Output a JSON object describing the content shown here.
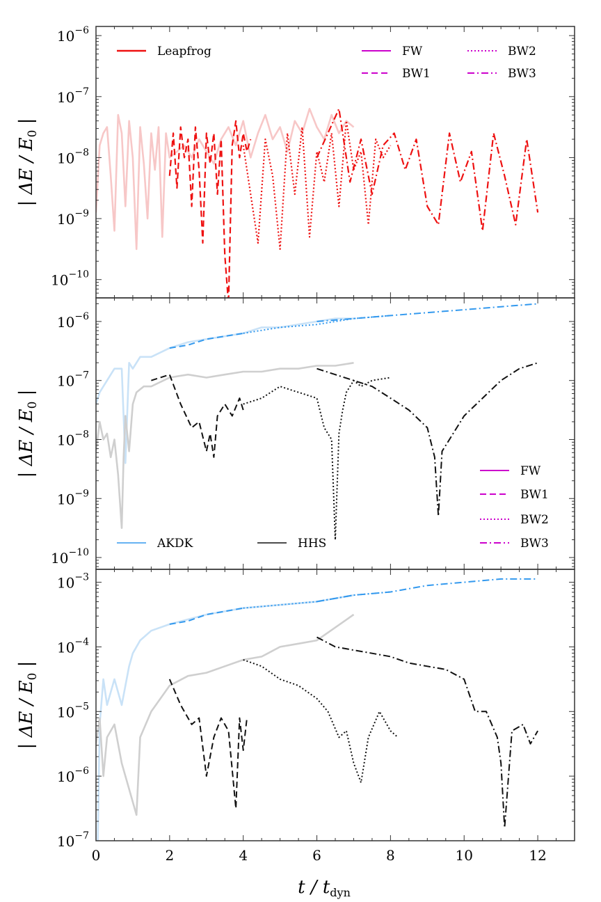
{
  "figure": {
    "xlabel_main": "t / t",
    "xlabel_sub": "dyn",
    "ylabel_main": "| ΔE / E",
    "ylabel_sub": "0",
    "ylabel_end": "|"
  },
  "chart_data": [
    {
      "type": "line",
      "panel": "top",
      "ylabel": "| ΔE / E0 |",
      "xlabel": "",
      "xlim": [
        0,
        13
      ],
      "ylog_range": [
        -10.3,
        -5.85
      ],
      "ytick_exponents": [
        -6,
        -7,
        -8,
        -9,
        -10
      ],
      "ytick_base": "10",
      "legend_main": [
        {
          "label": "Leapfrog",
          "color": "#ee1111",
          "style": "solid"
        }
      ],
      "legend_variants": [
        {
          "label": "FW",
          "style": "solid"
        },
        {
          "label": "BW1",
          "style": "dashed"
        },
        {
          "label": "BW2",
          "style": "dotted"
        },
        {
          "label": "BW3",
          "style": "dashdot"
        }
      ],
      "legend_variant_color": "#cc00cc",
      "series": [
        {
          "name": "Leapfrog FW",
          "color": "#f7c7c7",
          "style": "solid",
          "width": 2.6,
          "x": [
            0.0,
            0.1,
            0.2,
            0.3,
            0.4,
            0.5,
            0.6,
            0.7,
            0.8,
            0.9,
            1.0,
            1.1,
            1.2,
            1.3,
            1.4,
            1.5,
            1.6,
            1.7,
            1.8,
            1.9,
            2.0,
            2.2,
            2.4,
            2.6,
            2.8,
            3.0,
            3.2,
            3.4,
            3.6,
            3.8,
            4.0,
            4.2,
            4.4,
            4.6,
            4.8,
            5.0,
            5.2,
            5.4,
            5.6,
            5.8,
            6.0,
            6.2,
            6.4,
            6.6,
            6.8,
            7.0
          ],
          "y": [
            -8.9,
            -7.8,
            -7.6,
            -7.5,
            -8.3,
            -9.2,
            -7.3,
            -7.6,
            -8.8,
            -7.4,
            -8.0,
            -9.5,
            -7.5,
            -8.1,
            -9.0,
            -7.6,
            -8.2,
            -7.5,
            -9.3,
            -7.6,
            -8.0,
            -7.9,
            -7.8,
            -8.0,
            -7.7,
            -7.9,
            -8.1,
            -7.7,
            -7.5,
            -7.8,
            -7.4,
            -8.0,
            -7.6,
            -7.3,
            -7.7,
            -7.5,
            -7.9,
            -7.4,
            -7.6,
            -7.2,
            -7.5,
            -7.7,
            -7.3,
            -7.6,
            -7.4,
            -7.5
          ]
        },
        {
          "name": "Leapfrog BW1",
          "color": "#ee1111",
          "style": "dashed",
          "width": 2.2,
          "x": [
            2.0,
            2.1,
            2.2,
            2.3,
            2.4,
            2.5,
            2.6,
            2.7,
            2.8,
            2.9,
            3.0,
            3.1,
            3.2,
            3.3,
            3.4,
            3.5,
            3.6,
            3.7,
            3.8,
            3.9,
            4.0,
            4.1,
            4.2
          ],
          "y": [
            -8.3,
            -7.6,
            -8.5,
            -7.5,
            -8.0,
            -7.7,
            -8.8,
            -7.5,
            -8.2,
            -9.4,
            -7.6,
            -8.1,
            -7.6,
            -8.6,
            -7.7,
            -9.6,
            -10.4,
            -7.8,
            -7.4,
            -8.0,
            -7.6,
            -7.9,
            -7.7
          ]
        },
        {
          "name": "Leapfrog BW2",
          "color": "#ee1111",
          "style": "dotted",
          "width": 2.2,
          "x": [
            4.0,
            4.2,
            4.4,
            4.6,
            4.8,
            5.0,
            5.2,
            5.4,
            5.6,
            5.8,
            6.0,
            6.2,
            6.4,
            6.6,
            6.8,
            7.0,
            7.2,
            7.4,
            7.6,
            7.8,
            8.0
          ],
          "y": [
            -7.8,
            -8.6,
            -9.4,
            -7.7,
            -8.3,
            -9.5,
            -7.6,
            -8.6,
            -7.5,
            -9.3,
            -7.9,
            -8.4,
            -7.6,
            -8.8,
            -7.4,
            -8.2,
            -7.9,
            -9.1,
            -7.7,
            -8.0,
            -7.8
          ]
        },
        {
          "name": "Leapfrog BW3",
          "color": "#ee1111",
          "style": "dashdot",
          "width": 2.2,
          "x": [
            6.0,
            6.3,
            6.6,
            6.9,
            7.2,
            7.5,
            7.8,
            8.1,
            8.4,
            8.7,
            9.0,
            9.3,
            9.6,
            9.9,
            10.2,
            10.5,
            10.8,
            11.1,
            11.4,
            11.7,
            12.0
          ],
          "y": [
            -8.0,
            -7.6,
            -7.2,
            -8.4,
            -7.7,
            -8.6,
            -7.8,
            -7.6,
            -8.2,
            -7.7,
            -8.8,
            -9.1,
            -7.6,
            -8.4,
            -7.9,
            -9.2,
            -7.6,
            -8.3,
            -9.1,
            -7.7,
            -8.9
          ]
        }
      ]
    },
    {
      "type": "line",
      "panel": "middle",
      "ylabel": "| ΔE / E0 |",
      "xlabel": "",
      "xlim": [
        0,
        13
      ],
      "ylog_range": [
        -10.2,
        -5.6
      ],
      "ytick_exponents": [
        -6,
        -7,
        -8,
        -9,
        -10
      ],
      "ytick_base": "10",
      "legend_variants": [
        {
          "label": "FW",
          "style": "solid"
        },
        {
          "label": "BW1",
          "style": "dashed"
        },
        {
          "label": "BW2",
          "style": "dotted"
        },
        {
          "label": "BW3",
          "style": "dashdot"
        }
      ],
      "legend_variant_color": "#cc00cc",
      "legend_main": [
        {
          "label": "AKDK",
          "color": "#3399ee",
          "style": "solid"
        },
        {
          "label": "HHS",
          "color": "#111111",
          "style": "solid"
        }
      ],
      "series": [
        {
          "name": "AKDK FW",
          "color": "#c9e2f7",
          "style": "solid",
          "width": 2.6,
          "x": [
            0.0,
            0.1,
            0.3,
            0.5,
            0.7,
            0.8,
            0.9,
            1.0,
            1.2,
            1.5,
            2.0,
            2.5,
            3.0,
            3.5,
            4.0,
            4.5,
            5.0,
            5.5,
            6.0,
            6.5,
            7.0
          ],
          "y": [
            -7.4,
            -7.2,
            -7.0,
            -6.8,
            -6.8,
            -8.4,
            -6.7,
            -6.8,
            -6.6,
            -6.6,
            -6.45,
            -6.35,
            -6.3,
            -6.25,
            -6.2,
            -6.1,
            -6.1,
            -6.05,
            -6.0,
            -5.95,
            -5.95
          ]
        },
        {
          "name": "AKDK BW1",
          "color": "#3399ee",
          "style": "dashed",
          "width": 2.0,
          "x": [
            2.0,
            2.5,
            3.0,
            3.5,
            4.0
          ],
          "y": [
            -6.45,
            -6.4,
            -6.3,
            -6.25,
            -6.2
          ]
        },
        {
          "name": "AKDK BW2",
          "color": "#3399ee",
          "style": "dotted",
          "width": 2.0,
          "x": [
            4.0,
            5.0,
            6.0,
            7.0,
            8.0
          ],
          "y": [
            -6.2,
            -6.1,
            -6.05,
            -5.95,
            -5.9
          ]
        },
        {
          "name": "AKDK BW3",
          "color": "#3399ee",
          "style": "dashdot",
          "width": 2.0,
          "x": [
            6.0,
            7.0,
            8.0,
            9.0,
            10.0,
            11.0,
            12.0
          ],
          "y": [
            -6.0,
            -5.95,
            -5.9,
            -5.85,
            -5.8,
            -5.75,
            -5.7
          ]
        },
        {
          "name": "HHS FW",
          "color": "#cfcfcf",
          "style": "solid",
          "width": 2.6,
          "x": [
            0.0,
            0.1,
            0.2,
            0.3,
            0.4,
            0.5,
            0.6,
            0.7,
            0.75,
            0.8,
            0.9,
            1.0,
            1.1,
            1.2,
            1.3,
            1.5,
            2.0,
            2.5,
            3.0,
            3.5,
            4.0,
            4.5,
            5.0,
            5.5,
            6.0,
            6.5,
            7.0
          ],
          "y": [
            -8.2,
            -7.7,
            -8.0,
            -7.9,
            -8.3,
            -8.0,
            -8.6,
            -9.5,
            -8.3,
            -7.6,
            -8.2,
            -7.4,
            -7.2,
            -7.15,
            -7.1,
            -7.1,
            -6.95,
            -6.9,
            -6.95,
            -6.9,
            -6.85,
            -6.85,
            -6.8,
            -6.8,
            -6.75,
            -6.75,
            -6.7
          ]
        },
        {
          "name": "HHS BW1",
          "color": "#111111",
          "style": "dashed",
          "width": 2.0,
          "x": [
            1.5,
            2.0,
            2.3,
            2.6,
            2.8,
            3.0,
            3.1,
            3.2,
            3.3,
            3.5,
            3.7,
            3.9,
            4.0
          ],
          "y": [
            -7.0,
            -6.9,
            -7.4,
            -7.8,
            -7.7,
            -8.2,
            -7.9,
            -8.3,
            -7.6,
            -7.4,
            -7.6,
            -7.3,
            -7.5
          ]
        },
        {
          "name": "HHS BW2",
          "color": "#111111",
          "style": "dotted",
          "width": 2.0,
          "x": [
            4.0,
            4.5,
            5.0,
            5.5,
            6.0,
            6.2,
            6.4,
            6.5,
            6.6,
            6.7,
            6.8,
            7.0,
            7.2,
            7.5,
            8.0
          ],
          "y": [
            -7.4,
            -7.3,
            -7.1,
            -7.2,
            -7.3,
            -7.8,
            -8.0,
            -9.7,
            -7.9,
            -7.5,
            -7.2,
            -7.0,
            -7.1,
            -7.0,
            -6.95
          ]
        },
        {
          "name": "HHS BW3",
          "color": "#111111",
          "style": "dashdot",
          "width": 2.0,
          "x": [
            6.0,
            6.5,
            7.0,
            7.5,
            8.0,
            8.5,
            9.0,
            9.2,
            9.3,
            9.4,
            9.6,
            10.0,
            10.5,
            11.0,
            11.5,
            12.0
          ],
          "y": [
            -6.8,
            -6.9,
            -7.0,
            -7.1,
            -7.3,
            -7.5,
            -7.8,
            -8.3,
            -9.3,
            -8.2,
            -8.0,
            -7.6,
            -7.3,
            -7.0,
            -6.8,
            -6.7
          ]
        }
      ]
    },
    {
      "type": "line",
      "panel": "bottom",
      "ylabel": "| ΔE / E0 |",
      "xlabel": "t / t_dyn",
      "xlim": [
        0,
        13
      ],
      "ylog_range": [
        -7.0,
        -2.8
      ],
      "ytick_exponents": [
        -3,
        -4,
        -5,
        -6,
        -7
      ],
      "ytick_base": "10",
      "x_ticks": [
        0,
        2,
        4,
        6,
        8,
        10,
        12
      ],
      "series": [
        {
          "name": "AKDK FW",
          "color": "#c9e2f7",
          "style": "solid",
          "width": 2.6,
          "x": [
            0.05,
            0.1,
            0.2,
            0.3,
            0.5,
            0.7,
            0.9,
            1.0,
            1.2,
            1.5,
            2.0,
            3.0,
            4.0,
            5.0,
            6.0,
            7.0
          ],
          "y": [
            -7.0,
            -5.2,
            -4.5,
            -4.9,
            -4.5,
            -4.9,
            -4.3,
            -4.1,
            -3.9,
            -3.75,
            -3.65,
            -3.5,
            -3.4,
            -3.35,
            -3.3,
            -3.2
          ]
        },
        {
          "name": "AKDK BW1",
          "color": "#3399ee",
          "style": "dashed",
          "width": 2.0,
          "x": [
            2.0,
            2.5,
            3.0,
            3.5,
            4.0
          ],
          "y": [
            -3.65,
            -3.6,
            -3.5,
            -3.45,
            -3.4
          ]
        },
        {
          "name": "AKDK BW2",
          "color": "#3399ee",
          "style": "dotted",
          "width": 2.0,
          "x": [
            4.0,
            5.0,
            6.0,
            7.0,
            8.0
          ],
          "y": [
            -3.4,
            -3.35,
            -3.3,
            -3.2,
            -3.15
          ]
        },
        {
          "name": "AKDK BW3",
          "color": "#3399ee",
          "style": "dashdot",
          "width": 2.0,
          "x": [
            6.0,
            7.0,
            8.0,
            9.0,
            10.0,
            11.0,
            12.0
          ],
          "y": [
            -3.3,
            -3.2,
            -3.15,
            -3.05,
            -3.0,
            -2.95,
            -2.95
          ]
        },
        {
          "name": "HHS FW",
          "color": "#cfcfcf",
          "style": "solid",
          "width": 2.6,
          "x": [
            0.0,
            0.1,
            0.2,
            0.3,
            0.5,
            0.7,
            0.9,
            1.1,
            1.2,
            1.5,
            2.0,
            2.5,
            3.0,
            3.5,
            4.0,
            4.5,
            5.0,
            5.5,
            6.0,
            6.5,
            7.0
          ],
          "y": [
            -5.5,
            -5.1,
            -6.0,
            -5.4,
            -5.2,
            -5.8,
            -6.2,
            -6.6,
            -5.4,
            -5.0,
            -4.6,
            -4.45,
            -4.4,
            -4.3,
            -4.2,
            -4.15,
            -4.0,
            -3.95,
            -3.9,
            -3.7,
            -3.5
          ]
        },
        {
          "name": "HHS BW1",
          "color": "#111111",
          "style": "dashed",
          "width": 2.0,
          "x": [
            2.0,
            2.3,
            2.6,
            2.8,
            3.0,
            3.2,
            3.4,
            3.6,
            3.8,
            3.9,
            4.0,
            4.1
          ],
          "y": [
            -4.5,
            -4.9,
            -5.2,
            -5.1,
            -6.0,
            -5.4,
            -5.1,
            -5.3,
            -6.5,
            -5.1,
            -5.6,
            -5.1
          ]
        },
        {
          "name": "HHS BW2",
          "color": "#111111",
          "style": "dotted",
          "width": 2.0,
          "x": [
            4.0,
            4.5,
            5.0,
            5.5,
            6.0,
            6.3,
            6.6,
            6.8,
            7.0,
            7.2,
            7.4,
            7.7,
            8.0,
            8.2
          ],
          "y": [
            -4.2,
            -4.3,
            -4.5,
            -4.6,
            -4.8,
            -5.0,
            -5.4,
            -5.3,
            -5.8,
            -6.1,
            -5.4,
            -5.0,
            -5.3,
            -5.4
          ]
        },
        {
          "name": "HHS BW3",
          "color": "#111111",
          "style": "dashdot",
          "width": 2.0,
          "x": [
            6.0,
            6.5,
            7.0,
            7.5,
            8.0,
            8.5,
            9.0,
            9.5,
            10.0,
            10.3,
            10.6,
            10.9,
            11.0,
            11.1,
            11.3,
            11.6,
            11.8,
            12.0
          ],
          "y": [
            -3.85,
            -4.0,
            -4.05,
            -4.1,
            -4.15,
            -4.25,
            -4.3,
            -4.35,
            -4.5,
            -5.0,
            -5.0,
            -5.4,
            -5.8,
            -6.8,
            -5.3,
            -5.2,
            -5.5,
            -5.3
          ]
        }
      ]
    }
  ]
}
